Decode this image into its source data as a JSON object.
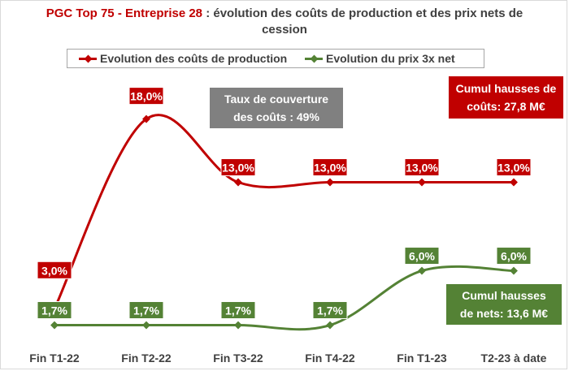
{
  "title": {
    "accent": "PGC Top 75 - Entreprise 28",
    "rest": " : évolution des coûts de production et des prix nets de cession"
  },
  "callouts": {
    "coverage": [
      "Taux de couverture",
      "des coûts : 49%"
    ],
    "costs": [
      "Cumul hausses de",
      "coûts: 27,8 M€"
    ],
    "nets": [
      "Cumul hausses",
      "de nets: 13,6 M€"
    ]
  },
  "colors": {
    "costs": "#c00000",
    "nets": "#548235",
    "coverage": "#808080"
  },
  "chart_data": {
    "type": "line",
    "categories": [
      "Fin T1-22",
      "Fin T2-22",
      "Fin T3-22",
      "Fin T4-22",
      "Fin T1-23",
      "T2-23 à date"
    ],
    "series": [
      {
        "name": "Evolution des coûts de production",
        "values": [
          3.0,
          18.0,
          13.0,
          13.0,
          13.0,
          13.0
        ],
        "labels": [
          "3,0%",
          "18,0%",
          "13,0%",
          "13,0%",
          "13,0%",
          "13,0%"
        ],
        "color": "#c00000"
      },
      {
        "name": "Evolution du prix 3x net",
        "values": [
          1.7,
          1.7,
          1.7,
          1.7,
          6.0,
          6.0
        ],
        "labels": [
          "1,7%",
          "1,7%",
          "1,7%",
          "1,7%",
          "6,0%",
          "6,0%"
        ],
        "color": "#548235"
      }
    ],
    "smooth": true,
    "grid": false,
    "legend": "top",
    "xlabel": "",
    "ylabel": ""
  }
}
